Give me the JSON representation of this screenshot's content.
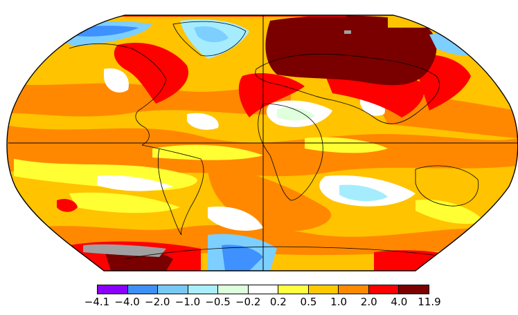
{
  "map": {
    "projection": "Robinson",
    "colors": {
      "deep_red": "#7a0000",
      "red": "#ff0000",
      "orange": "#ff8800",
      "gold": "#ffc300",
      "yellow": "#ffff33",
      "white": "#ffffff",
      "pale_green": "#dfffdd",
      "light_cyan": "#a6ecff",
      "light_blue": "#7ccfff",
      "blue": "#3e91ff",
      "purple": "#8a00ff",
      "missing_gray": "#a0a0a0",
      "coast": "#000000"
    }
  },
  "legend": {
    "swatches": [
      {
        "color": "#8a00ff"
      },
      {
        "color": "#3e8ff6"
      },
      {
        "color": "#78c8f5"
      },
      {
        "color": "#a8eefc"
      },
      {
        "color": "#dcffdc"
      },
      {
        "color": "#ffffff"
      },
      {
        "color": "#ffff40"
      },
      {
        "color": "#ffc800"
      },
      {
        "color": "#ff8a00"
      },
      {
        "color": "#ff0000"
      },
      {
        "color": "#7c0000"
      }
    ],
    "ticks": [
      "−4.1",
      "−4.0",
      "−2.0",
      "−1.0",
      "−0.5",
      "−0.2",
      "0.2",
      "0.5",
      "1.0",
      "2.0",
      "4.0",
      "11.9"
    ]
  }
}
